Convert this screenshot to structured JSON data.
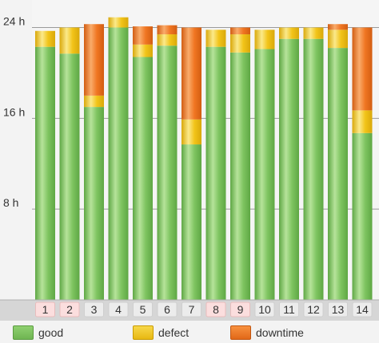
{
  "chart_data": {
    "type": "bar",
    "stacked": true,
    "categories": [
      "1",
      "2",
      "3",
      "4",
      "5",
      "6",
      "7",
      "8",
      "9",
      "10",
      "11",
      "12",
      "13",
      "14"
    ],
    "highlighted_categories": [
      "1",
      "2",
      "8",
      "9"
    ],
    "series": [
      {
        "name": "good",
        "color": "#7ec460",
        "values": [
          22.3,
          21.7,
          17.0,
          24.0,
          21.4,
          22.4,
          13.7,
          22.3,
          21.8,
          22.1,
          23.0,
          23.0,
          22.2,
          14.7
        ]
      },
      {
        "name": "defect",
        "color": "#f2c419",
        "values": [
          1.4,
          2.3,
          1.0,
          0.9,
          1.1,
          1.0,
          2.2,
          1.5,
          1.6,
          1.7,
          1.0,
          1.0,
          1.6,
          2.0
        ]
      },
      {
        "name": "downtime",
        "color": "#f07622",
        "values": [
          0.0,
          0.0,
          6.3,
          0.0,
          1.6,
          0.8,
          8.1,
          0.0,
          0.6,
          0.0,
          0.0,
          0.0,
          0.5,
          7.3
        ]
      }
    ],
    "yticks": [
      "8 h",
      "16 h",
      "24 h"
    ],
    "ytick_values": [
      8,
      16,
      24
    ],
    "ylim": [
      0,
      25.3
    ],
    "grid": true,
    "legend_position": "bottom",
    "title": "",
    "xlabel": "",
    "ylabel": ""
  },
  "legend": [
    {
      "label": "good",
      "color": "#7ec460"
    },
    {
      "label": "defect",
      "color": "#f2c419"
    },
    {
      "label": "downtime",
      "color": "#f07622"
    }
  ]
}
